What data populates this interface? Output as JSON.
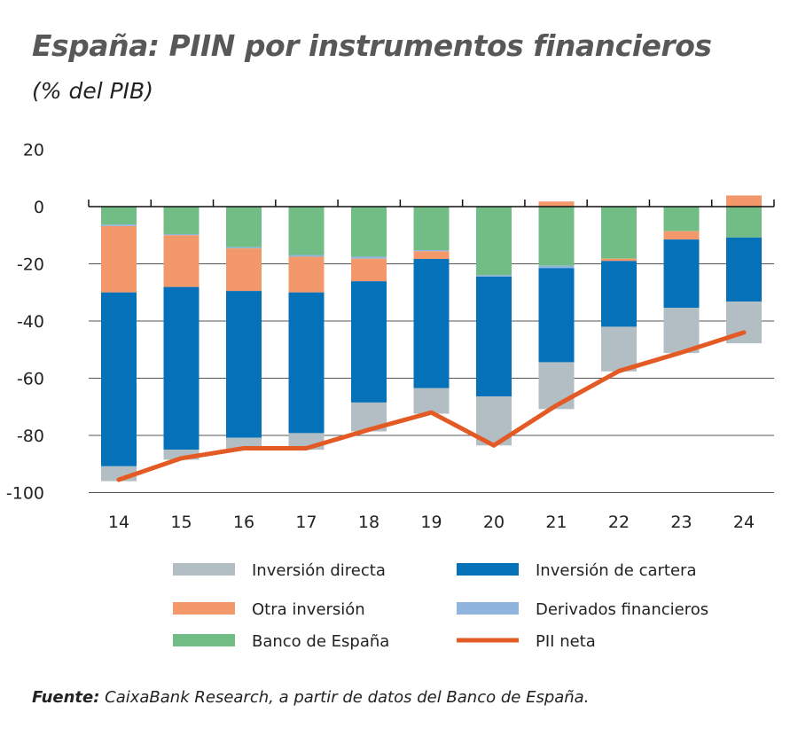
{
  "title": "España: PIIN por instrumentos financieros",
  "subtitle": "(% del PIB)",
  "source_label": "Fuente:",
  "source_text": " CaixaBank Research, a partir de datos del Banco de España.",
  "chart_data": {
    "type": "bar",
    "stacked": true,
    "categories": [
      "14",
      "15",
      "16",
      "17",
      "18",
      "19",
      "20",
      "21",
      "22",
      "23",
      "24"
    ],
    "ylim": [
      -100,
      20
    ],
    "yticks": [
      20,
      0,
      -20,
      -40,
      -60,
      -80,
      -100
    ],
    "grid": true,
    "legend_position": "bottom",
    "series": [
      {
        "name": "Banco de España",
        "color": "#72bd85",
        "values": [
          -6.3,
          -9.6,
          -14.2,
          -16.9,
          -17.5,
          -15.2,
          -24.0,
          -20.7,
          -18.2,
          -8.6,
          -10.8
        ]
      },
      {
        "name": "Derivados financieros",
        "color": "#8fb4de",
        "values": [
          -0.5,
          -0.4,
          -0.4,
          -0.6,
          -0.7,
          -0.4,
          -0.5,
          -0.8,
          0,
          0,
          0
        ]
      },
      {
        "name": "Otra inversión",
        "color": "#f3986b",
        "values": [
          -23.2,
          -18.1,
          -14.9,
          -12.5,
          -7.9,
          -2.7,
          0,
          1.8,
          -0.8,
          -2.9,
          3.9
        ]
      },
      {
        "name": "Inversión de cartera",
        "color": "#0571b8",
        "values": [
          -60.8,
          -56.9,
          -51.3,
          -49.2,
          -42.4,
          -45.2,
          -41.9,
          -32.9,
          -23.0,
          -23.9,
          -22.4
        ]
      },
      {
        "name": "Inversión directa",
        "color": "#b2bec3",
        "values": [
          -5.2,
          -3.5,
          -4.2,
          -5.8,
          -10.1,
          -8.9,
          -17.1,
          -16.4,
          -15.6,
          -15.8,
          -14.6
        ]
      }
    ],
    "line": {
      "name": "PII neta",
      "color": "#e45a25",
      "values": [
        -95.5,
        -88,
        -84.5,
        -84.5,
        -78,
        -72,
        -83.5,
        -69.5,
        -57.5,
        -51,
        -44
      ]
    },
    "legend": [
      {
        "name": "Inversión directa",
        "color": "#b2bec3",
        "kind": "bar"
      },
      {
        "name": "Inversión de cartera",
        "color": "#0571b8",
        "kind": "bar"
      },
      {
        "name": "Otra inversión",
        "color": "#f3986b",
        "kind": "bar"
      },
      {
        "name": "Derivados financieros",
        "color": "#8fb4de",
        "kind": "bar"
      },
      {
        "name": "Banco de España",
        "color": "#72bd85",
        "kind": "bar"
      },
      {
        "name": "PII neta",
        "color": "#e45a25",
        "kind": "line"
      }
    ]
  }
}
